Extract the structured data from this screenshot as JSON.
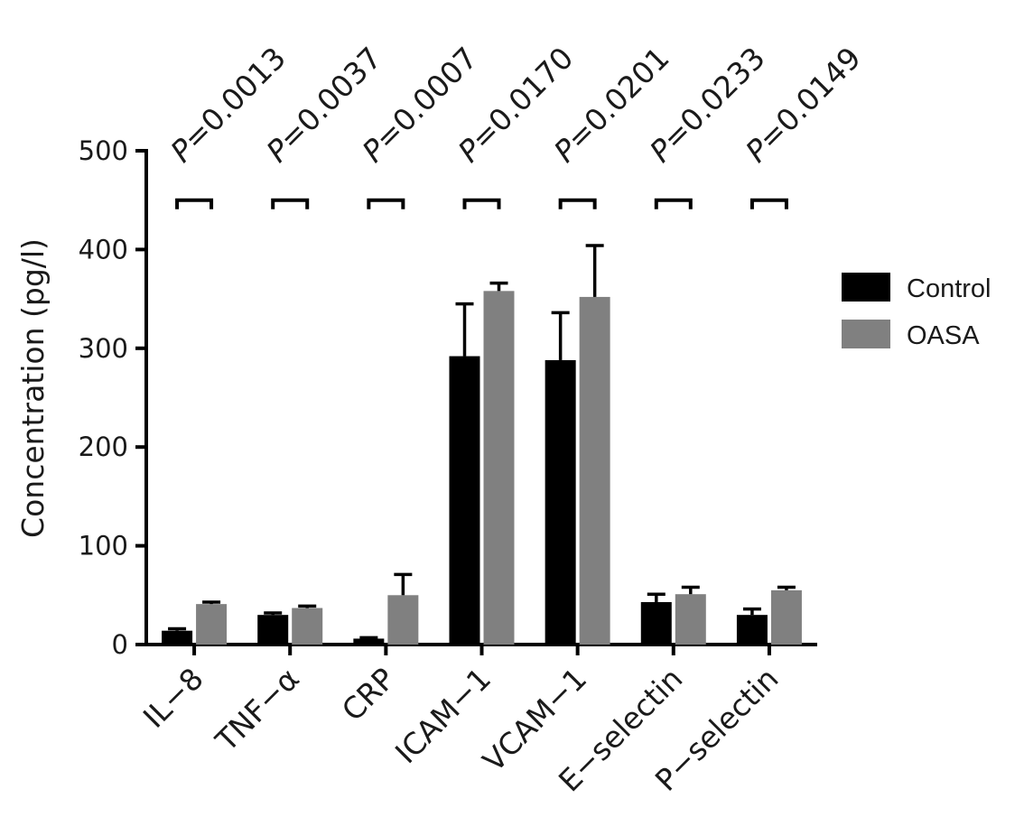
{
  "chart_data": {
    "type": "bar",
    "title": "",
    "xlabel": "",
    "ylabel": "Concentration (pg/l)",
    "ylim": [
      0,
      500
    ],
    "yticks": [
      "0",
      "100",
      "200",
      "300",
      "400",
      "500"
    ],
    "categories": [
      "IL−8",
      "TNF−α",
      "CRP",
      "ICAM−1",
      "VCAM−1",
      "E−selectin",
      "P−selectin"
    ],
    "series": [
      {
        "name": "Control",
        "color": "#000000",
        "values": [
          14,
          30,
          6,
          292,
          288,
          43,
          30
        ],
        "errors": [
          2,
          2,
          1,
          53,
          48,
          8,
          6
        ]
      },
      {
        "name": "OASA",
        "color": "#808080",
        "values": [
          41,
          37,
          50,
          358,
          352,
          51,
          55
        ],
        "errors": [
          2,
          2,
          21,
          8,
          52,
          7,
          3
        ]
      }
    ],
    "p_values": [
      "P=0.0013",
      "P=0.0037",
      "P=0.0007",
      "P=0.0170",
      "P=0.0201",
      "P=0.0233",
      "P=0.0149"
    ],
    "significance_bracket_level": 450,
    "legend": {
      "position": "right",
      "entries": [
        "Control",
        "OASA"
      ]
    },
    "grid": false
  }
}
